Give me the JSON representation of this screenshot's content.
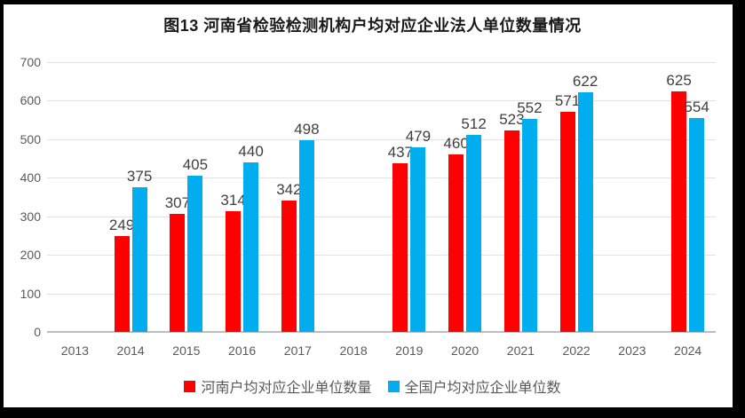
{
  "chart_data": {
    "type": "bar",
    "title": "图13 河南省检验检测机构户均对应企业法人单位数量情况",
    "categories": [
      "2013",
      "2014",
      "2015",
      "2016",
      "2017",
      "2018",
      "2019",
      "2020",
      "2021",
      "2022",
      "2023",
      "2024"
    ],
    "series": [
      {
        "name": "河南户均对应企业单位数量",
        "color": "#FF0000",
        "values": [
          null,
          249,
          307,
          314,
          342,
          null,
          437,
          460,
          523,
          571,
          null,
          625
        ]
      },
      {
        "name": "全国户均对应企业单位数",
        "color": "#00AEEF",
        "values": [
          null,
          375,
          405,
          440,
          498,
          null,
          479,
          512,
          552,
          622,
          null,
          554
        ]
      }
    ],
    "xlabel": "",
    "ylabel": "",
    "ylim": [
      0,
      700
    ],
    "ytick_step": 100,
    "grid": "horizontal",
    "legend_position": "bottom"
  },
  "colors": {
    "series_henan": "#FF0000",
    "series_national": "#00AEEF",
    "gridline": "#e2e2e2",
    "axis_line": "#bdbdbd",
    "tick_label": "#595959",
    "data_label": "#3f3f3f",
    "title": "#1a1a1a",
    "frame": "#000000"
  }
}
